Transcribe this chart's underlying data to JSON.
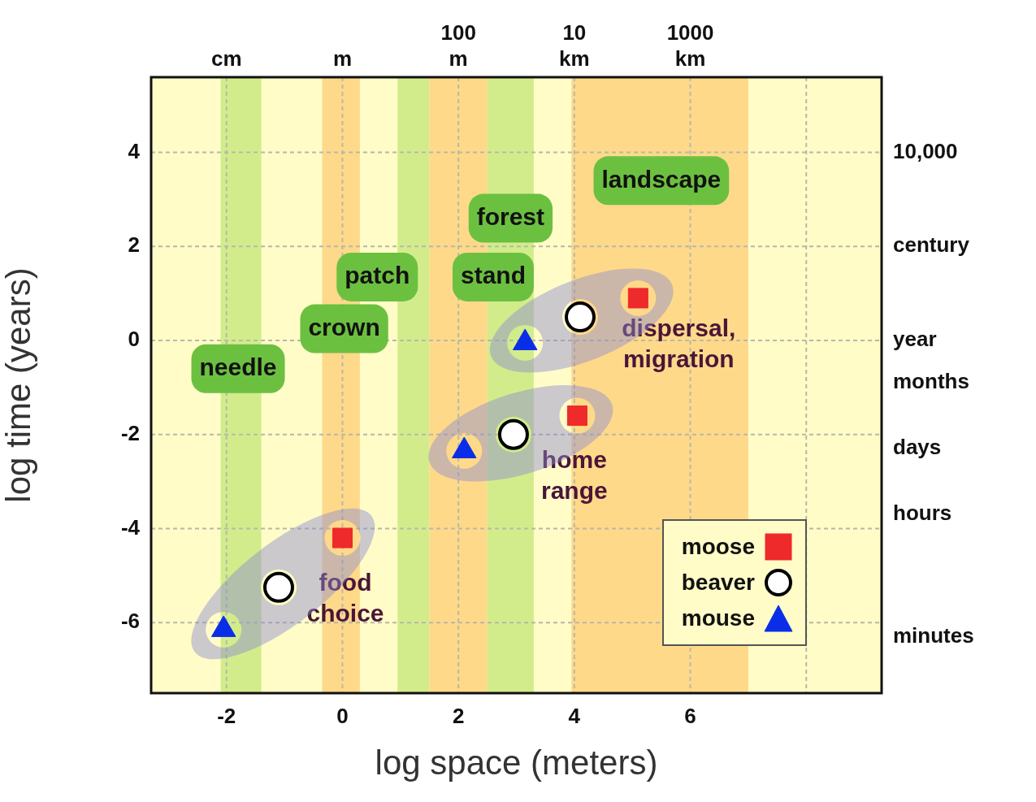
{
  "chart_data": {
    "type": "scatter",
    "xlabel": "log space (meters)",
    "ylabel": "log time (years)",
    "xlim": [
      -3.3,
      9.3
    ],
    "xticks": [
      -2,
      0,
      2,
      4,
      6,
      {
        "value": 8,
        "label": null
      }
    ],
    "ylim": [
      -7.5,
      5.6
    ],
    "yticks": [
      -6,
      -4,
      -2,
      0,
      2,
      4
    ],
    "grid": true,
    "legend": "bottom right",
    "series": [
      {
        "name": "moose",
        "color": "#ee2a2a",
        "marker": "square",
        "x": [
          0,
          4.05,
          5.1
        ],
        "values": [
          -4.2,
          -1.6,
          0.9
        ]
      },
      {
        "name": "beaver",
        "color": "#ffffff",
        "marker": "circle",
        "x": [
          -1.1,
          2.95,
          4.1
        ],
        "values": [
          -5.25,
          -2.0,
          0.5
        ]
      },
      {
        "name": "mouse",
        "color": "#0a2ee8",
        "marker": "triangle",
        "x": [
          -2.05,
          2.1,
          3.15
        ],
        "values": [
          -6.15,
          -2.35,
          -0.05
        ]
      }
    ],
    "bands": [
      {
        "axis": "x",
        "from": -2.1,
        "to": -1.4,
        "color": "#d2ec8c"
      },
      {
        "axis": "x",
        "from": -0.35,
        "to": 0.3,
        "color": "#ffd98a"
      },
      {
        "axis": "x",
        "from": 0.95,
        "to": 1.5,
        "color": "#d2ec8c"
      },
      {
        "axis": "x",
        "from": 1.5,
        "to": 2.5,
        "color": "#ffd98a"
      },
      {
        "axis": "x",
        "from": 2.5,
        "to": 3.3,
        "color": "#d2ec8c"
      },
      {
        "axis": "x",
        "from": 3.95,
        "to": 7.0,
        "color": "#ffd98a"
      }
    ],
    "annotations": [
      "needle",
      "crown",
      "patch",
      "stand",
      "forest",
      "landscape",
      "food choice",
      "home range",
      "dispersal, migration",
      "cm",
      "m",
      "100 m",
      "10 km",
      "1000 km",
      "10,000",
      "century",
      "year",
      "months",
      "days",
      "hours",
      "minutes"
    ]
  }
}
